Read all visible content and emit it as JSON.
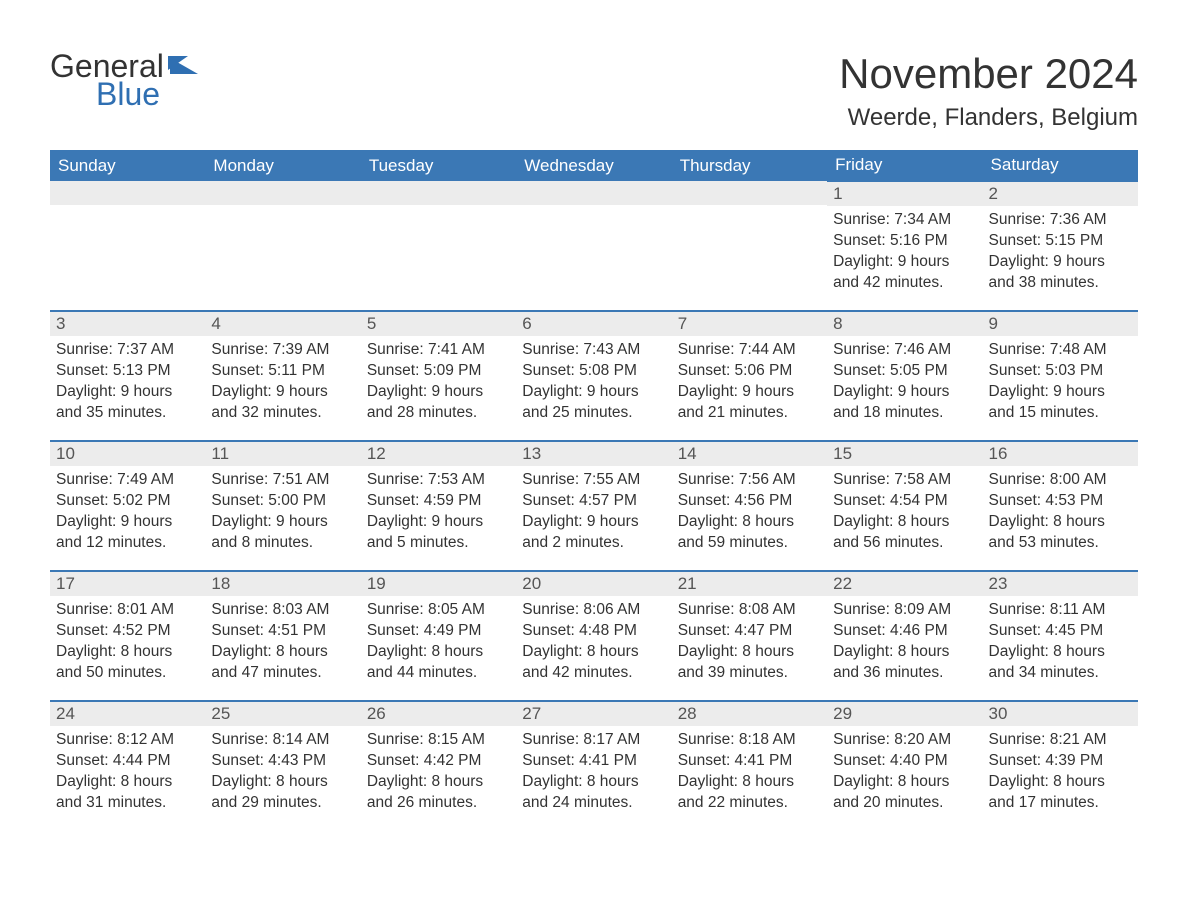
{
  "logo": {
    "line1": "General",
    "line2": "Blue"
  },
  "title": "November 2024",
  "location": "Weerde, Flanders, Belgium",
  "colors": {
    "header_bg": "#3b78b5",
    "header_fg": "#ffffff",
    "row_border": "#3b78b5",
    "daynum_bg": "#ececec",
    "text": "#333333",
    "accent": "#2f6fb2"
  },
  "weekdays": [
    "Sunday",
    "Monday",
    "Tuesday",
    "Wednesday",
    "Thursday",
    "Friday",
    "Saturday"
  ],
  "weeks": [
    [
      {
        "empty": true
      },
      {
        "empty": true
      },
      {
        "empty": true
      },
      {
        "empty": true
      },
      {
        "empty": true
      },
      {
        "day": 1,
        "sunrise": "7:34 AM",
        "sunset": "5:16 PM",
        "daylight": "9 hours and 42 minutes."
      },
      {
        "day": 2,
        "sunrise": "7:36 AM",
        "sunset": "5:15 PM",
        "daylight": "9 hours and 38 minutes."
      }
    ],
    [
      {
        "day": 3,
        "sunrise": "7:37 AM",
        "sunset": "5:13 PM",
        "daylight": "9 hours and 35 minutes."
      },
      {
        "day": 4,
        "sunrise": "7:39 AM",
        "sunset": "5:11 PM",
        "daylight": "9 hours and 32 minutes."
      },
      {
        "day": 5,
        "sunrise": "7:41 AM",
        "sunset": "5:09 PM",
        "daylight": "9 hours and 28 minutes."
      },
      {
        "day": 6,
        "sunrise": "7:43 AM",
        "sunset": "5:08 PM",
        "daylight": "9 hours and 25 minutes."
      },
      {
        "day": 7,
        "sunrise": "7:44 AM",
        "sunset": "5:06 PM",
        "daylight": "9 hours and 21 minutes."
      },
      {
        "day": 8,
        "sunrise": "7:46 AM",
        "sunset": "5:05 PM",
        "daylight": "9 hours and 18 minutes."
      },
      {
        "day": 9,
        "sunrise": "7:48 AM",
        "sunset": "5:03 PM",
        "daylight": "9 hours and 15 minutes."
      }
    ],
    [
      {
        "day": 10,
        "sunrise": "7:49 AM",
        "sunset": "5:02 PM",
        "daylight": "9 hours and 12 minutes."
      },
      {
        "day": 11,
        "sunrise": "7:51 AM",
        "sunset": "5:00 PM",
        "daylight": "9 hours and 8 minutes."
      },
      {
        "day": 12,
        "sunrise": "7:53 AM",
        "sunset": "4:59 PM",
        "daylight": "9 hours and 5 minutes."
      },
      {
        "day": 13,
        "sunrise": "7:55 AM",
        "sunset": "4:57 PM",
        "daylight": "9 hours and 2 minutes."
      },
      {
        "day": 14,
        "sunrise": "7:56 AM",
        "sunset": "4:56 PM",
        "daylight": "8 hours and 59 minutes."
      },
      {
        "day": 15,
        "sunrise": "7:58 AM",
        "sunset": "4:54 PM",
        "daylight": "8 hours and 56 minutes."
      },
      {
        "day": 16,
        "sunrise": "8:00 AM",
        "sunset": "4:53 PM",
        "daylight": "8 hours and 53 minutes."
      }
    ],
    [
      {
        "day": 17,
        "sunrise": "8:01 AM",
        "sunset": "4:52 PM",
        "daylight": "8 hours and 50 minutes."
      },
      {
        "day": 18,
        "sunrise": "8:03 AM",
        "sunset": "4:51 PM",
        "daylight": "8 hours and 47 minutes."
      },
      {
        "day": 19,
        "sunrise": "8:05 AM",
        "sunset": "4:49 PM",
        "daylight": "8 hours and 44 minutes."
      },
      {
        "day": 20,
        "sunrise": "8:06 AM",
        "sunset": "4:48 PM",
        "daylight": "8 hours and 42 minutes."
      },
      {
        "day": 21,
        "sunrise": "8:08 AM",
        "sunset": "4:47 PM",
        "daylight": "8 hours and 39 minutes."
      },
      {
        "day": 22,
        "sunrise": "8:09 AM",
        "sunset": "4:46 PM",
        "daylight": "8 hours and 36 minutes."
      },
      {
        "day": 23,
        "sunrise": "8:11 AM",
        "sunset": "4:45 PM",
        "daylight": "8 hours and 34 minutes."
      }
    ],
    [
      {
        "day": 24,
        "sunrise": "8:12 AM",
        "sunset": "4:44 PM",
        "daylight": "8 hours and 31 minutes."
      },
      {
        "day": 25,
        "sunrise": "8:14 AM",
        "sunset": "4:43 PM",
        "daylight": "8 hours and 29 minutes."
      },
      {
        "day": 26,
        "sunrise": "8:15 AM",
        "sunset": "4:42 PM",
        "daylight": "8 hours and 26 minutes."
      },
      {
        "day": 27,
        "sunrise": "8:17 AM",
        "sunset": "4:41 PM",
        "daylight": "8 hours and 24 minutes."
      },
      {
        "day": 28,
        "sunrise": "8:18 AM",
        "sunset": "4:41 PM",
        "daylight": "8 hours and 22 minutes."
      },
      {
        "day": 29,
        "sunrise": "8:20 AM",
        "sunset": "4:40 PM",
        "daylight": "8 hours and 20 minutes."
      },
      {
        "day": 30,
        "sunrise": "8:21 AM",
        "sunset": "4:39 PM",
        "daylight": "8 hours and 17 minutes."
      }
    ]
  ],
  "labels": {
    "sunrise": "Sunrise:",
    "sunset": "Sunset:",
    "daylight": "Daylight:"
  }
}
